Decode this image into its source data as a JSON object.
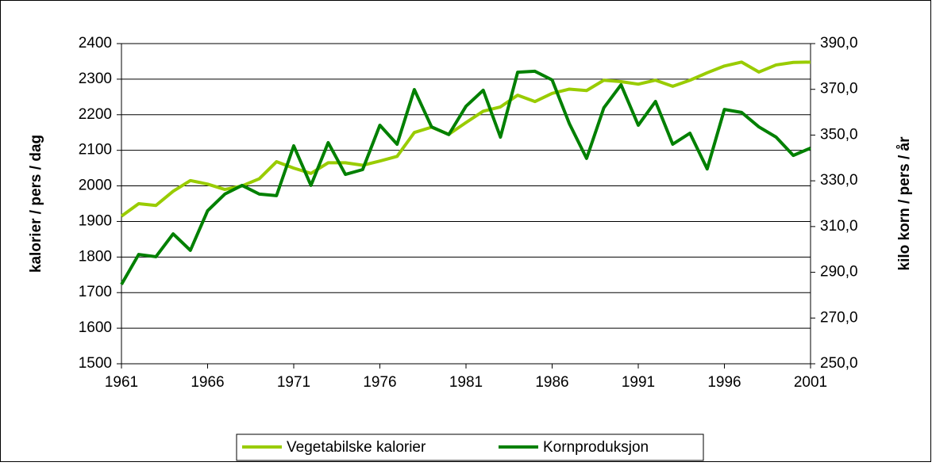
{
  "chart_data": {
    "type": "line",
    "x": [
      1961,
      1962,
      1963,
      1964,
      1965,
      1966,
      1967,
      1968,
      1969,
      1970,
      1971,
      1972,
      1973,
      1974,
      1975,
      1976,
      1977,
      1978,
      1979,
      1980,
      1981,
      1982,
      1983,
      1984,
      1985,
      1986,
      1987,
      1988,
      1989,
      1990,
      1991,
      1992,
      1993,
      1994,
      1995,
      1996,
      1997,
      1998,
      1999,
      2000,
      2001
    ],
    "xlim": [
      1961,
      2001
    ],
    "xticks": [
      1961,
      1966,
      1971,
      1976,
      1981,
      1986,
      1991,
      1996,
      2001
    ],
    "ylim": [
      1500,
      2400
    ],
    "yticks": [
      1500,
      1600,
      1700,
      1800,
      1900,
      2000,
      2100,
      2200,
      2300,
      2400
    ],
    "y2lim": [
      250,
      390
    ],
    "y2ticks": [
      {
        "value": 250,
        "label": "250,0"
      },
      {
        "value": 270,
        "label": "270,0"
      },
      {
        "value": 290,
        "label": "290,0"
      },
      {
        "value": 310,
        "label": "310,0"
      },
      {
        "value": 330,
        "label": "330,0"
      },
      {
        "value": 350,
        "label": "350,0"
      },
      {
        "value": 370,
        "label": "370,0"
      },
      {
        "value": 390,
        "label": "390,0"
      }
    ],
    "ylabel": "kalorier / pers / dag",
    "y2label": "kilo korn / pers / år",
    "grid": true,
    "legend": "bottom",
    "series": [
      {
        "name": "Vegetabilske kalorier",
        "color": "#99cc00",
        "values": [
          1915,
          1950,
          1945,
          1985,
          2015,
          2005,
          1990,
          2000,
          2020,
          2068,
          2050,
          2035,
          2065,
          2065,
          2058,
          2070,
          2083,
          2150,
          2165,
          2145,
          2178,
          2210,
          2222,
          2255,
          2237,
          2260,
          2272,
          2268,
          2297,
          2293,
          2286,
          2297,
          2280,
          2297,
          2318,
          2337,
          2348,
          2320,
          2340,
          2347,
          2348
        ]
      },
      {
        "name": "Kornproduksjon",
        "color": "#008000",
        "axis": "y2",
        "values": [
          284.7,
          297.8,
          296.8,
          306.8,
          299.6,
          316.9,
          324.2,
          328,
          324.2,
          323.5,
          345.3,
          328,
          346.7,
          332.8,
          334.9,
          354.3,
          346,
          369.9,
          353.6,
          350.2,
          362.6,
          369.6,
          349.1,
          377.5,
          377.9,
          374.1,
          355,
          339.8,
          361.9,
          372,
          354.3,
          364.7,
          346,
          350.8,
          335.2,
          361.2,
          359.9,
          353.6,
          349.1,
          341.1,
          344.3
        ]
      }
    ]
  }
}
